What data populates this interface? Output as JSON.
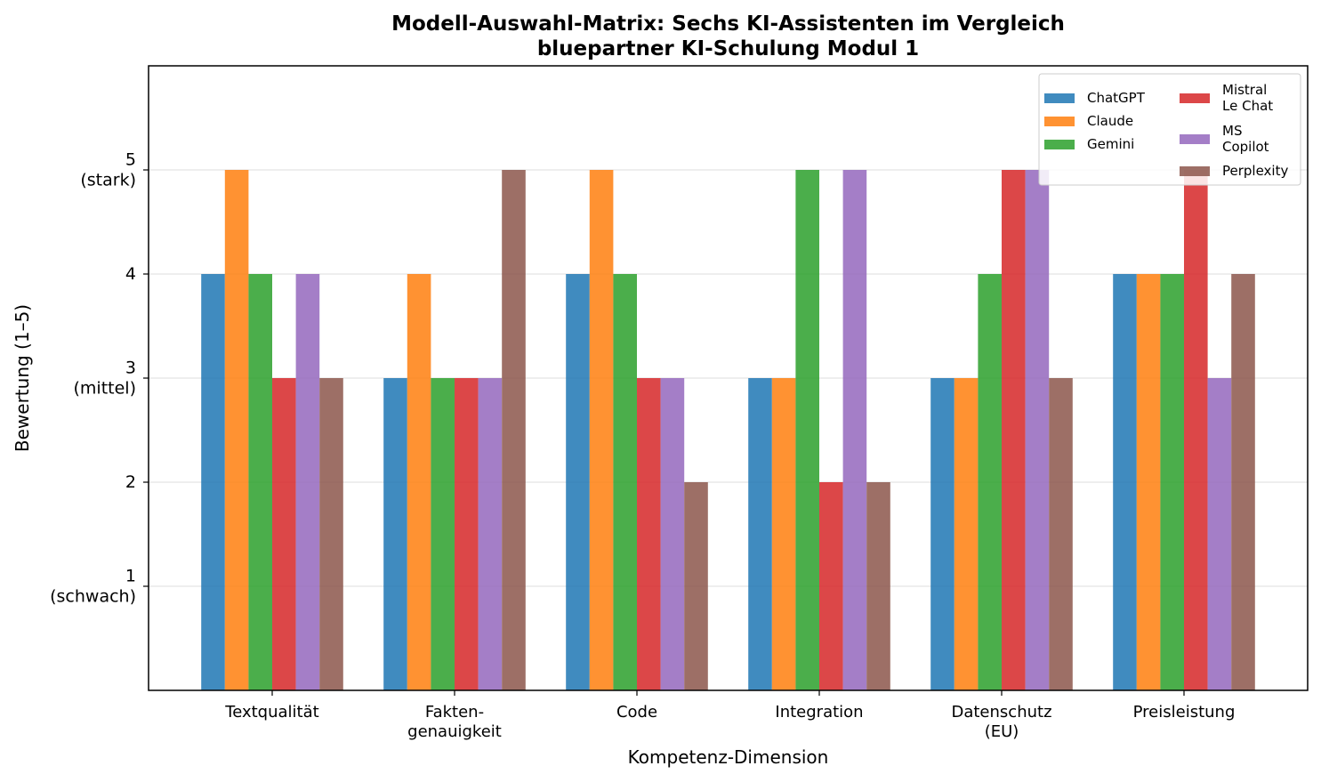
{
  "chart_data": {
    "type": "bar",
    "title": [
      "Modell-Auswahl-Matrix: Sechs KI-Assistenten im Vergleich",
      "bluepartner KI-Schulung Modul 1"
    ],
    "xlabel": "Kompetenz-Dimension",
    "ylabel": "Bewertung (1–5)",
    "ylim": [
      0,
      6
    ],
    "grid": "horizontal",
    "legend_position": "top-right",
    "categories": [
      [
        "Textqualität"
      ],
      [
        "Fakten-",
        "genauigkeit"
      ],
      [
        "Code"
      ],
      [
        "Integration"
      ],
      [
        "Datenschutz",
        "(EU)"
      ],
      [
        "Preisleistung"
      ]
    ],
    "yticks": [
      {
        "value": 1,
        "lines": [
          "1",
          "(schwach)"
        ]
      },
      {
        "value": 2,
        "lines": [
          "2"
        ]
      },
      {
        "value": 3,
        "lines": [
          "3",
          "(mittel)"
        ]
      },
      {
        "value": 4,
        "lines": [
          "4"
        ]
      },
      {
        "value": 5,
        "lines": [
          "5",
          "(stark)"
        ]
      }
    ],
    "series": [
      {
        "name": [
          "ChatGPT"
        ],
        "color": "#1f77b4",
        "values": [
          4,
          3,
          4,
          3,
          3,
          4
        ]
      },
      {
        "name": [
          "Claude"
        ],
        "color": "#ff7f0e",
        "values": [
          5,
          4,
          5,
          3,
          3,
          4
        ]
      },
      {
        "name": [
          "Gemini"
        ],
        "color": "#2ca02c",
        "values": [
          4,
          3,
          4,
          5,
          4,
          4
        ]
      },
      {
        "name": [
          "Mistral",
          "Le Chat"
        ],
        "color": "#d62728",
        "values": [
          3,
          3,
          3,
          2,
          5,
          5
        ]
      },
      {
        "name": [
          "MS",
          "Copilot"
        ],
        "color": "#9467bd",
        "values": [
          4,
          3,
          3,
          5,
          5,
          3
        ]
      },
      {
        "name": [
          "Perplexity"
        ],
        "color": "#8c564b",
        "values": [
          3,
          5,
          2,
          2,
          3,
          4
        ]
      }
    ]
  }
}
